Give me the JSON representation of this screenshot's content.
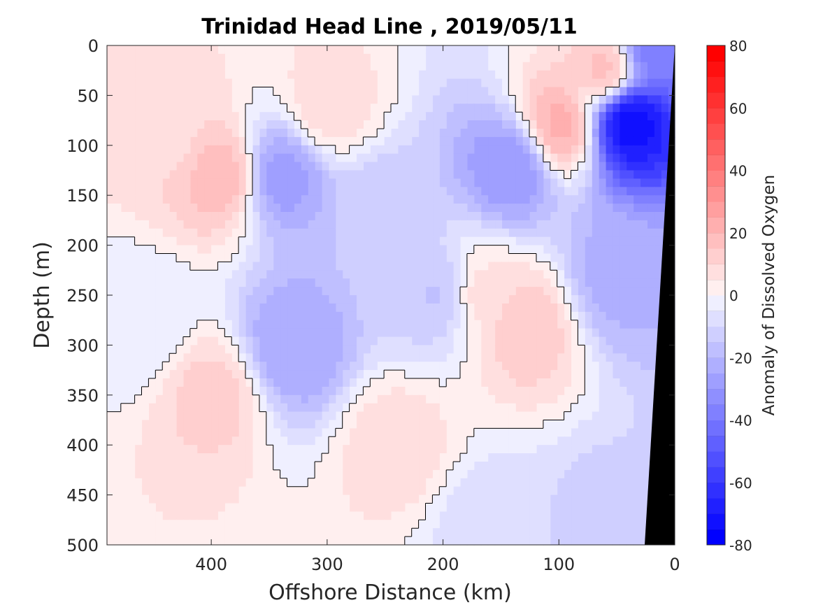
{
  "chart_data": {
    "type": "heatmap",
    "title": "Trinidad Head Line , 2019/05/11",
    "xlabel": "Offshore Distance (km)",
    "ylabel": "Depth (m)",
    "colorbar_label": "Anomaly of Dissolved Oxygen",
    "x_direction": "reversed",
    "xlim": [
      490,
      0
    ],
    "ylim": [
      500,
      0
    ],
    "y_direction": "reversed",
    "x_ticks": [
      400,
      300,
      200,
      100,
      0
    ],
    "y_ticks": [
      0,
      50,
      100,
      150,
      200,
      250,
      300,
      350,
      400,
      450,
      500
    ],
    "colorbar_ticks": [
      80,
      60,
      40,
      20,
      0,
      -20,
      -40,
      -60,
      -80
    ],
    "colorbar_range": [
      -80,
      80
    ],
    "colorbar_step": 5,
    "colormap": {
      "negative": "#0000ff",
      "zero": "#ffffff",
      "positive": "#ff0000"
    },
    "zero_contour": true,
    "bathymetry_color": "#000000",
    "features": [
      {
        "x": 390,
        "y": 130,
        "v": 18
      },
      {
        "x": 300,
        "y": 60,
        "v": 8
      },
      {
        "x": 440,
        "y": 80,
        "v": 8
      },
      {
        "x": 340,
        "y": 130,
        "v": -28
      },
      {
        "x": 330,
        "y": 300,
        "v": -25
      },
      {
        "x": 250,
        "y": 170,
        "v": -14
      },
      {
        "x": 200,
        "y": 250,
        "v": -16
      },
      {
        "x": 140,
        "y": 120,
        "v": -30
      },
      {
        "x": 100,
        "y": 80,
        "v": 22
      },
      {
        "x": 60,
        "y": 25,
        "v": 18
      },
      {
        "x": 40,
        "y": 75,
        "v": -75
      },
      {
        "x": 20,
        "y": 0,
        "v": -40
      },
      {
        "x": 50,
        "y": 230,
        "v": -22
      },
      {
        "x": 170,
        "y": 250,
        "v": 8
      },
      {
        "x": 130,
        "y": 280,
        "v": 14
      },
      {
        "x": 240,
        "y": 400,
        "v": 8
      },
      {
        "x": 400,
        "y": 350,
        "v": 12
      },
      {
        "x": 160,
        "y": 480,
        "v": -8
      },
      {
        "x": 60,
        "y": 480,
        "v": -12
      },
      {
        "x": 460,
        "y": 280,
        "v": -5
      },
      {
        "x": 450,
        "y": 490,
        "v": 5
      }
    ]
  }
}
